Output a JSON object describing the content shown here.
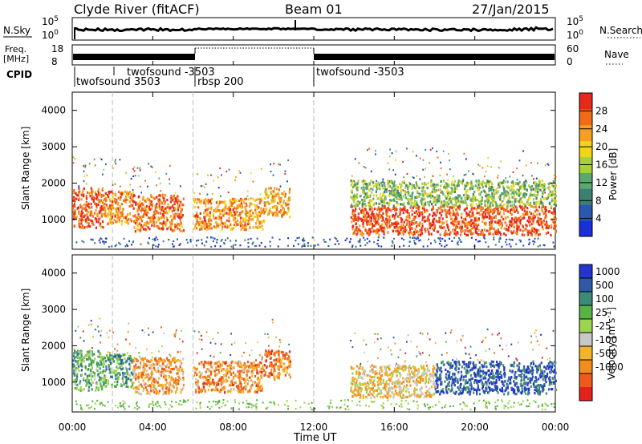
{
  "header": {
    "station": "Clyde River (fitACF)",
    "beam": "Beam 01",
    "date": "27/Jan/2015"
  },
  "nsky_panel": {
    "left_label": "N.Sky",
    "left_ticks": [
      "10^5",
      "10^0"
    ],
    "right_label": "N.Search",
    "right_ticks": [
      "10^5",
      "10^0"
    ]
  },
  "freq_panel": {
    "left_label_line1": "Freq.",
    "left_label_line2": "[MHz]",
    "left_ticks": [
      "18",
      "8"
    ],
    "right_label": "Nave",
    "right_ticks": [
      "60",
      "0"
    ]
  },
  "cpid": {
    "label": "CPID",
    "segments": [
      {
        "name": "twofsound 3503",
        "start_hour": 0,
        "row": 2
      },
      {
        "name": "twofsound -3503",
        "start_hour": 2,
        "row": 1
      },
      {
        "name": "rbsp 200",
        "start_hour": 6,
        "row": 2
      },
      {
        "name": "twofsound -3503",
        "start_hour": 12,
        "row": 1
      }
    ]
  },
  "x_axis": {
    "label": "Time UT",
    "ticks": [
      "00:00",
      "04:00",
      "08:00",
      "12:00",
      "16:00",
      "20:00",
      "00:00"
    ]
  },
  "chart_data": [
    {
      "type": "heatmap",
      "title": "Power",
      "ylabel": "Slant Range [km]",
      "yticks": [
        "1000",
        "2000",
        "3000",
        "4000"
      ],
      "ylim": [
        180,
        4500
      ],
      "xlim": [
        0,
        24
      ],
      "colorbar": {
        "label": "Power [dB]",
        "ticks": [
          "4",
          "8",
          "12",
          "16",
          "20",
          "24",
          "28"
        ],
        "range": [
          0,
          32
        ],
        "colors": [
          "#1b2fd8",
          "#2a58b0",
          "#3e7f74",
          "#5aa76f",
          "#a8cf3c",
          "#f0d51a",
          "#f5a022",
          "#f06a1a",
          "#e8281a"
        ]
      },
      "bands": [
        {
          "x": [
            0.0,
            1.5
          ],
          "y": [
            800,
            1900
          ],
          "level": 0.85
        },
        {
          "x": [
            1.5,
            3.0
          ],
          "y": [
            900,
            1800
          ],
          "level": 0.78
        },
        {
          "x": [
            3.0,
            5.5
          ],
          "y": [
            700,
            1700
          ],
          "level": 0.82
        },
        {
          "x": [
            6.0,
            9.5
          ],
          "y": [
            750,
            1600
          ],
          "level": 0.76
        },
        {
          "x": [
            9.5,
            10.8
          ],
          "y": [
            1100,
            1900
          ],
          "level": 0.7
        },
        {
          "x": [
            13.8,
            24.0
          ],
          "y": [
            600,
            1400
          ],
          "level": 0.88
        },
        {
          "x": [
            13.8,
            24.0
          ],
          "y": [
            1400,
            2100
          ],
          "level": 0.45
        }
      ]
    },
    {
      "type": "heatmap",
      "title": "Velocity",
      "ylabel": "Slant Range [km]",
      "yticks": [
        "1000",
        "2000",
        "3000",
        "4000"
      ],
      "ylim": [
        180,
        4500
      ],
      "xlim": [
        0,
        24
      ],
      "colorbar": {
        "label": "Velocity [m s^-1]",
        "ticks": [
          "1000",
          "500",
          "100",
          "25",
          "-25",
          "-100",
          "-500",
          "-1000"
        ],
        "colors": [
          "#2434cf",
          "#2f59a7",
          "#3e8a78",
          "#56b445",
          "#9bd64e",
          "#c8c8c8",
          "#f3b32a",
          "#f58d1c",
          "#ee5a1b",
          "#e3221c"
        ]
      },
      "bands": [
        {
          "x": [
            0.0,
            1.5
          ],
          "y": [
            800,
            1900
          ],
          "level": 0.35
        },
        {
          "x": [
            1.5,
            3.0
          ],
          "y": [
            900,
            1800
          ],
          "level": 0.3
        },
        {
          "x": [
            3.0,
            5.5
          ],
          "y": [
            700,
            1700
          ],
          "level": 0.72
        },
        {
          "x": [
            6.0,
            9.5
          ],
          "y": [
            750,
            1600
          ],
          "level": 0.75
        },
        {
          "x": [
            9.5,
            10.8
          ],
          "y": [
            1100,
            1900
          ],
          "level": 0.8
        },
        {
          "x": [
            13.8,
            18.0
          ],
          "y": [
            600,
            1500
          ],
          "level": 0.62
        },
        {
          "x": [
            18.0,
            24.0
          ],
          "y": [
            700,
            1600
          ],
          "level": 0.15
        }
      ]
    }
  ]
}
